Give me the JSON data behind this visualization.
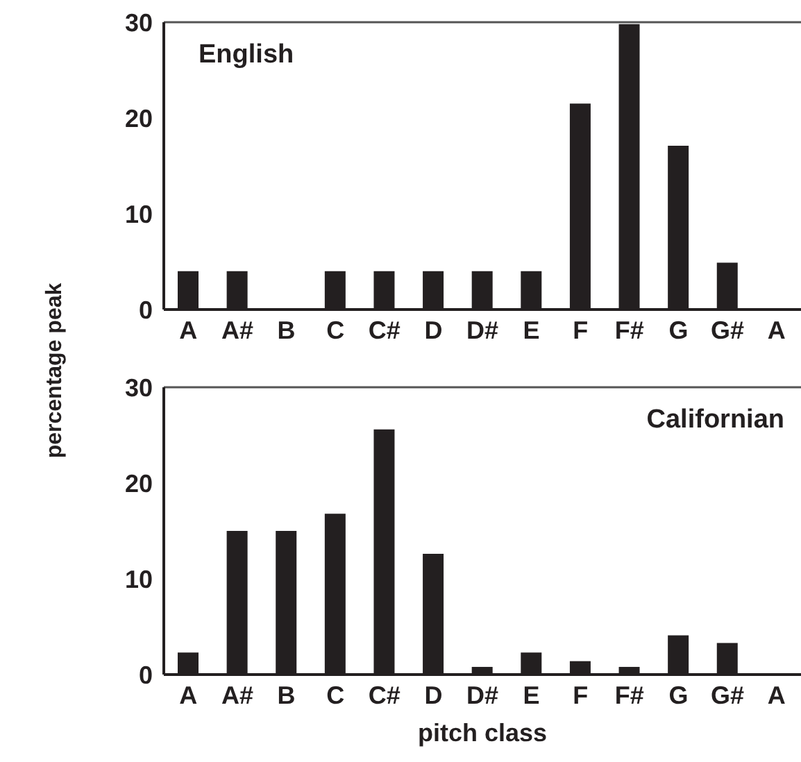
{
  "chart_data": [
    {
      "type": "bar",
      "title": "English",
      "ylabel": "percentage peak",
      "categories": [
        "A",
        "A#",
        "B",
        "C",
        "C#",
        "D",
        "D#",
        "E",
        "F",
        "F#",
        "G",
        "G#",
        "A"
      ],
      "values": [
        4,
        4,
        0,
        4,
        4,
        4,
        4,
        4,
        21.5,
        29.8,
        17.1,
        4.9,
        null
      ],
      "color": "#231f20",
      "ylim": [
        0,
        30
      ],
      "yticks": [
        0,
        10,
        20,
        30
      ],
      "grid": false,
      "legend": false
    },
    {
      "type": "bar",
      "title": "Californian",
      "xlabel": "pitch class",
      "categories": [
        "A",
        "A#",
        "B",
        "C",
        "C#",
        "D",
        "D#",
        "E",
        "F",
        "F#",
        "G",
        "G#",
        "A"
      ],
      "values": [
        2.3,
        15,
        15,
        16.8,
        25.6,
        12.6,
        0.8,
        2.3,
        1.4,
        0.8,
        4.1,
        3.3,
        null
      ],
      "color": "#231f20",
      "ylim": [
        0,
        30
      ],
      "yticks": [
        0,
        10,
        20,
        30
      ],
      "grid": false,
      "legend": false
    }
  ]
}
